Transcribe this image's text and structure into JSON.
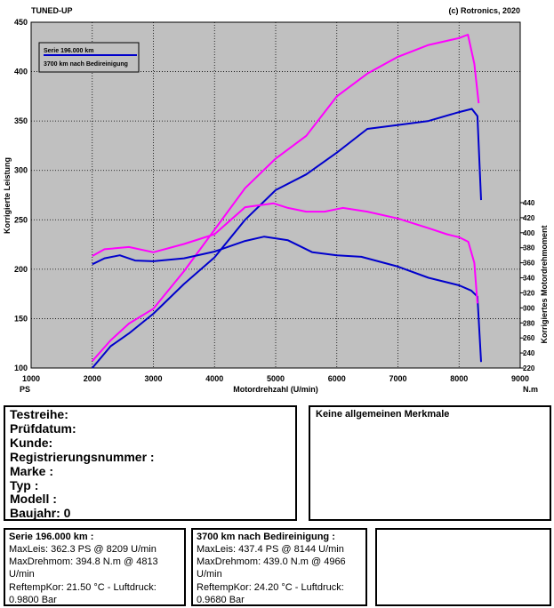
{
  "header": {
    "left": "TUNED-UP",
    "right": "(c) Rotronics, 2020"
  },
  "chart_data": {
    "type": "line",
    "xlabel": "Motordrehzahl (U/min)",
    "x_unit_left": "PS",
    "x_unit_right": "N.m",
    "ylabel_left": "Korrigierte Leistung",
    "ylabel_right": "Korrigiertes Motordrehmoment",
    "xlim": [
      1000,
      9000
    ],
    "ylim_left": [
      100,
      450
    ],
    "ylim_right": [
      220,
      440
    ],
    "x_ticks": [
      "1000",
      "2000",
      "3000",
      "4000",
      "5000",
      "6000",
      "7000",
      "8000",
      "9000"
    ],
    "y_left_ticks": [
      "100",
      "150",
      "200",
      "250",
      "300",
      "350",
      "400",
      "450"
    ],
    "y_right_ticks": [
      "220",
      "240",
      "260",
      "280",
      "300",
      "320",
      "340",
      "360",
      "380",
      "400",
      "420",
      "440"
    ],
    "grid": true,
    "legend_position": "top-left",
    "series": [
      {
        "name": "Serie 196.000 km",
        "color": "#0000CC",
        "axis": "left",
        "x": [
          2000,
          2300,
          2600,
          3000,
          3500,
          4000,
          4500,
          5000,
          5500,
          6000,
          6500,
          7000,
          7500,
          8000,
          8209,
          8300,
          8360
        ],
        "y": [
          100,
          122,
          135,
          155,
          185,
          212,
          250,
          280,
          296,
          318,
          342,
          346,
          350,
          359,
          362.3,
          355,
          270
        ]
      },
      {
        "name": "3700 km nach Bedireinigung",
        "color": "#FF00FF",
        "axis": "left",
        "x": [
          2000,
          2300,
          2600,
          3000,
          3500,
          4000,
          4500,
          5000,
          5500,
          6000,
          6500,
          7000,
          7500,
          8000,
          8144,
          8250,
          8320
        ],
        "y": [
          107,
          128,
          145,
          160,
          198,
          240,
          282,
          312,
          335,
          375,
          398,
          415,
          427,
          434,
          437.4,
          408,
          368
        ]
      },
      {
        "name": "Serie 196.000 km",
        "color": "#0000CC",
        "axis": "right",
        "x": [
          2000,
          2200,
          2450,
          2700,
          3000,
          3500,
          4000,
          4500,
          4813,
          5200,
          5600,
          6000,
          6400,
          7000,
          7500,
          8000,
          8200,
          8300,
          8360
        ],
        "y": [
          358,
          366,
          370,
          363,
          362,
          366,
          375,
          389,
          394.8,
          390,
          374,
          370,
          368,
          355,
          340,
          330,
          323,
          315,
          228
        ]
      },
      {
        "name": "3700 km nach Bedireinigung",
        "color": "#FF00FF",
        "axis": "right",
        "x": [
          2000,
          2200,
          2600,
          3000,
          3500,
          4000,
          4500,
          4966,
          5200,
          5500,
          5800,
          6100,
          6500,
          7000,
          7500,
          7800,
          8000,
          8150,
          8250,
          8300
        ],
        "y": [
          369,
          378,
          381,
          374,
          385,
          398,
          434,
          439,
          433,
          428,
          428,
          433,
          428,
          419,
          406,
          398,
          394,
          388,
          360,
          306
        ]
      }
    ]
  },
  "info_box": {
    "lines": [
      "Testreihe:",
      "Prüfdatum:",
      "Kunde:",
      "Registrierungsnummer  :",
      "Marke  :",
      "Typ  :",
      "Modell  :",
      "Baujahr: 0"
    ]
  },
  "notes_box": {
    "title": "Keine allgemeinen Merkmale"
  },
  "result_1": {
    "title": "Serie 196.000 km :",
    "lines": [
      "MaxLeis: 362.3 PS @ 8209 U/min",
      "MaxDrehmom: 394.8 N.m @ 4813",
      "U/min",
      "ReftempKor: 21.50 °C - Luftdruck:",
      "0.9800 Bar"
    ]
  },
  "result_2": {
    "title": "3700 km nach Bedireinigung :",
    "lines": [
      "MaxLeis: 437.4 PS @ 8144 U/min",
      "MaxDrehmom: 439.0 N.m @ 4966",
      "U/min",
      "ReftempKor: 24.20 °C - Luftdruck:",
      "0.9680 Bar"
    ]
  }
}
